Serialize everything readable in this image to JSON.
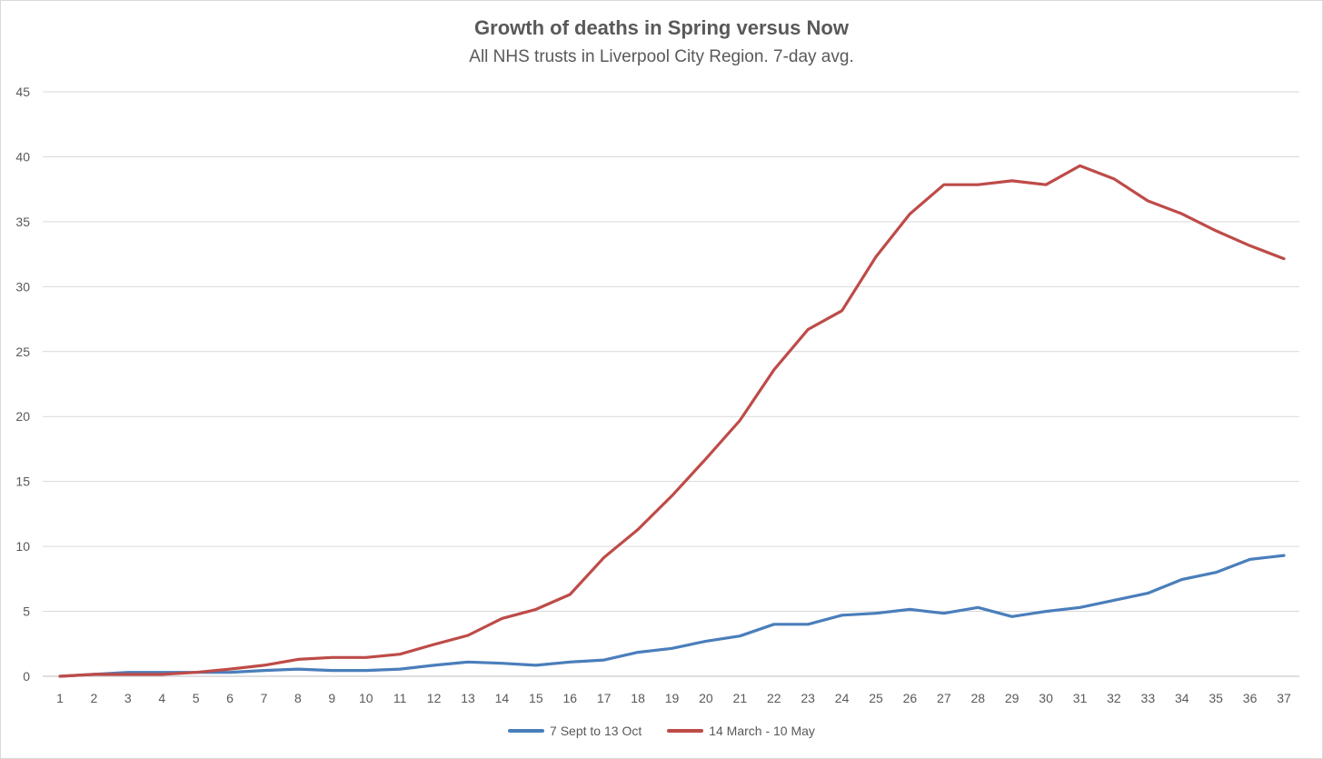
{
  "chart_data": {
    "type": "line",
    "title": "Growth of deaths in Spring versus Now",
    "subtitle": "All NHS trusts in Liverpool City Region. 7-day avg.",
    "xlabel": "",
    "ylabel": "",
    "ylim": [
      0,
      45
    ],
    "yticks": [
      0,
      5,
      10,
      15,
      20,
      25,
      30,
      35,
      40,
      45
    ],
    "x": [
      1,
      2,
      3,
      4,
      5,
      6,
      7,
      8,
      9,
      10,
      11,
      12,
      13,
      14,
      15,
      16,
      17,
      18,
      19,
      20,
      21,
      22,
      23,
      24,
      25,
      26,
      27,
      28,
      29,
      30,
      31,
      32,
      33,
      34,
      35,
      36,
      37
    ],
    "grid": true,
    "legend_position": "bottom",
    "series": [
      {
        "name": "7 Sept to 13 Oct",
        "color": "#4a7ebb",
        "values": [
          0,
          0.15,
          0.3,
          0.3,
          0.3,
          0.3,
          0.45,
          0.55,
          0.45,
          0.45,
          0.55,
          0.85,
          1.1,
          1.0,
          0.85,
          1.1,
          1.25,
          1.85,
          2.15,
          2.7,
          3.1,
          4.0,
          4.0,
          4.7,
          4.85,
          5.15,
          4.85,
          5.3,
          4.6,
          5.0,
          5.3,
          5.85,
          6.4,
          7.45,
          8.0,
          9.0,
          9.3
        ]
      },
      {
        "name": "14 March - 10 May",
        "color": "#be4b48",
        "values": [
          0,
          0.15,
          0.15,
          0.15,
          0.3,
          0.55,
          0.85,
          1.3,
          1.45,
          1.45,
          1.7,
          2.45,
          3.15,
          4.45,
          5.15,
          6.3,
          9.15,
          11.3,
          13.9,
          16.75,
          19.7,
          23.6,
          26.7,
          28.15,
          32.3,
          35.6,
          37.85,
          37.85,
          38.15,
          37.85,
          39.3,
          38.3,
          36.6,
          35.6,
          34.3,
          33.15,
          32.15
        ]
      }
    ]
  }
}
